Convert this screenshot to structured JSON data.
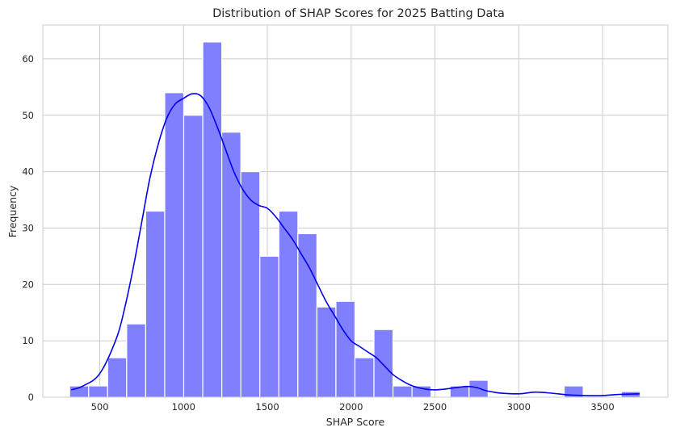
{
  "chart_data": {
    "type": "bar",
    "subtype": "histogram-with-kde",
    "title": "Distribution of SHAP Scores for 2025 Batting Data",
    "xlabel": "SHAP Score",
    "ylabel": "Frequency",
    "xlim": [
      160,
      3890
    ],
    "ylim": [
      0,
      66
    ],
    "xticks": [
      500,
      1000,
      1500,
      2000,
      2500,
      3000,
      3500
    ],
    "yticks": [
      0,
      10,
      20,
      30,
      40,
      50,
      60
    ],
    "grid": true,
    "colors": {
      "bar_fill": "#8080ff",
      "bar_edge": "#ffffff",
      "kde_line": "#0000ee",
      "grid": "#cccccc",
      "axes_edge": "#cccccc"
    },
    "bins": {
      "start": 320,
      "width": 113.5,
      "counts": [
        2,
        2,
        7,
        13,
        33,
        54,
        50,
        63,
        47,
        40,
        25,
        33,
        29,
        16,
        17,
        7,
        12,
        2,
        2,
        0,
        2,
        3,
        0,
        0,
        0,
        0,
        2,
        0,
        0,
        1
      ]
    },
    "kde": {
      "x": [
        330,
        400,
        500,
        600,
        650,
        700,
        750,
        800,
        850,
        900,
        950,
        1000,
        1050,
        1100,
        1150,
        1200,
        1250,
        1300,
        1350,
        1400,
        1450,
        1500,
        1550,
        1600,
        1650,
        1700,
        1750,
        1800,
        1850,
        1900,
        1950,
        2000,
        2050,
        2100,
        2150,
        2200,
        2250,
        2300,
        2350,
        2400,
        2450,
        2500,
        2550,
        2600,
        2650,
        2700,
        2750,
        2800,
        2850,
        2900,
        3000,
        3100,
        3200,
        3300,
        3400,
        3500,
        3600,
        3720
      ],
      "y": [
        1.3,
        2.0,
        4.2,
        10.5,
        16.0,
        23.0,
        31.0,
        39.0,
        45.0,
        49.5,
        52.0,
        53.0,
        53.8,
        53.5,
        51.5,
        48.0,
        44.0,
        40.0,
        37.0,
        35.0,
        34.0,
        33.5,
        32.0,
        30.0,
        28.0,
        25.5,
        23.0,
        20.0,
        17.0,
        14.5,
        12.0,
        10.0,
        9.0,
        8.0,
        7.0,
        5.5,
        4.0,
        3.0,
        2.2,
        1.7,
        1.4,
        1.3,
        1.4,
        1.6,
        1.8,
        1.9,
        1.7,
        1.2,
        0.9,
        0.7,
        0.6,
        0.9,
        0.7,
        0.4,
        0.3,
        0.3,
        0.5,
        0.6
      ]
    }
  }
}
